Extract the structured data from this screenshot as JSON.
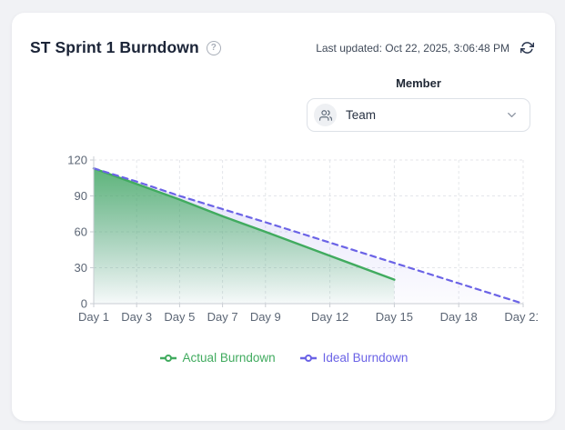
{
  "header": {
    "title": "ST Sprint 1 Burndown",
    "help_icon": "question-circle-icon",
    "last_updated": "Last updated: Oct 22, 2025, 3:06:48 PM",
    "refresh_icon": "refresh-icon"
  },
  "filter": {
    "label": "Member",
    "selected_value": "Team",
    "icon": "team-icon",
    "chevron_icon": "chevron-down-icon"
  },
  "chart_data": {
    "type": "line",
    "title": "ST Sprint 1 Burndown",
    "xlabel": "",
    "ylabel": "",
    "xlim": [
      1,
      21
    ],
    "ylim": [
      0,
      120
    ],
    "y_ticks": [
      0,
      30,
      60,
      90,
      120
    ],
    "x_ticks": [
      {
        "day": 1,
        "label": "Day 1"
      },
      {
        "day": 3,
        "label": "Day 3"
      },
      {
        "day": 5,
        "label": "Day 5"
      },
      {
        "day": 7,
        "label": "Day 7"
      },
      {
        "day": 9,
        "label": "Day 9"
      },
      {
        "day": 12,
        "label": "Day 12"
      },
      {
        "day": 15,
        "label": "Day 15"
      },
      {
        "day": 18,
        "label": "Day 18"
      },
      {
        "day": 21,
        "label": "Day 21"
      }
    ],
    "grid": true,
    "legend_position": "bottom",
    "series": [
      {
        "name": "Actual Burndown",
        "color": "#41ab5f",
        "line_style": "solid",
        "area_fill": true,
        "x": [
          1,
          3,
          5,
          7,
          9,
          12,
          15
        ],
        "values": [
          113,
          100,
          87,
          73,
          60,
          40,
          20
        ]
      },
      {
        "name": "Ideal Burndown",
        "color": "#6b63e6",
        "line_style": "dashed",
        "area_fill": true,
        "x": [
          1,
          3,
          5,
          7,
          9,
          12,
          15,
          18,
          21
        ],
        "values": [
          113,
          102,
          90,
          79,
          68,
          51,
          34,
          17,
          0
        ]
      }
    ]
  },
  "colors": {
    "page_bg": "#f1f2f5",
    "card_bg": "#ffffff",
    "title_text": "#1b2437",
    "grid_line": "#e4e6ea",
    "axis_line": "#c9cdd3",
    "tick_text": "#5c6675",
    "actual_green": "#41ab5f",
    "ideal_purple": "#6b63e6"
  }
}
